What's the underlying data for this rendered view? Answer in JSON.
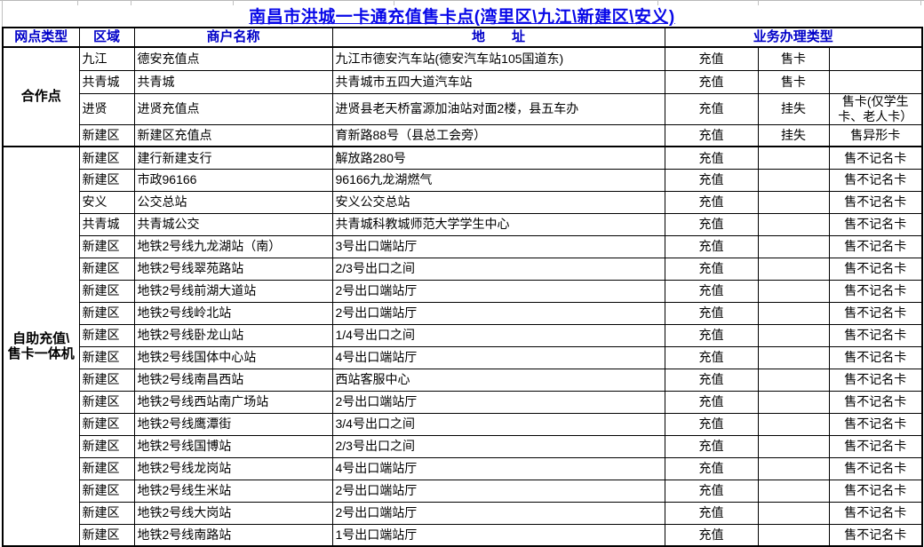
{
  "page": {
    "title": "南昌市洪城一卡通充值售卡点(湾里区\\九江\\新建区\\安义)"
  },
  "table": {
    "headers": {
      "col1": "网点类型",
      "col2": "区域",
      "col3": "商户名称",
      "col4": "地　　址",
      "col5": "业务办理类型"
    },
    "sections": [
      {
        "type_label": "合作点",
        "rows": [
          {
            "region": "九江",
            "merchant": "德安充值点",
            "address": "九江市德安汽车站(德安汽车站105国道东)",
            "biz1": "充值",
            "biz2": "售卡",
            "biz3": ""
          },
          {
            "region": "共青城",
            "merchant": "共青城",
            "address": "共青城市五四大道汽车站",
            "biz1": "充值",
            "biz2": "售卡",
            "biz3": ""
          },
          {
            "region": "进贤",
            "merchant": "进贤充值点",
            "address": "进贤县老天桥富源加油站对面2楼，县五车办",
            "biz1": "充值",
            "biz2": "挂失",
            "biz3": "售卡(仅学生卡、老人卡）"
          },
          {
            "region": "新建区",
            "merchant": "新建区充值点",
            "address": "育新路88号（县总工会旁）",
            "biz1": "充值",
            "biz2": "挂失",
            "biz3": "售异形卡"
          }
        ]
      },
      {
        "type_label": "自助充值\\\n售卡一体机",
        "rows": [
          {
            "region": "新建区",
            "merchant": "建行新建支行",
            "address": "解放路280号",
            "biz1": "充值",
            "biz2": "",
            "biz3": "售不记名卡"
          },
          {
            "region": "新建区",
            "merchant": "市政96166",
            "address": "96166九龙湖燃气",
            "biz1": "充值",
            "biz2": "",
            "biz3": "售不记名卡"
          },
          {
            "region": "安义",
            "merchant": "公交总站",
            "address": "安义公交总站",
            "biz1": "充值",
            "biz2": "",
            "biz3": "售不记名卡"
          },
          {
            "region": "共青城",
            "merchant": "共青城公交",
            "address": "共青城科教城师范大学学生中心",
            "biz1": "充值",
            "biz2": "",
            "biz3": "售不记名卡"
          },
          {
            "region": "新建区",
            "merchant": "地铁2号线九龙湖站（南）",
            "address": "3号出口端站厅",
            "biz1": "充值",
            "biz2": "",
            "biz3": "售不记名卡"
          },
          {
            "region": "新建区",
            "merchant": "地铁2号线翠苑路站",
            "address": "2/3号出口之间",
            "biz1": "充值",
            "biz2": "",
            "biz3": "售不记名卡"
          },
          {
            "region": "新建区",
            "merchant": "地铁2号线前湖大道站",
            "address": "2号出口端站厅",
            "biz1": "充值",
            "biz2": "",
            "biz3": "售不记名卡"
          },
          {
            "region": "新建区",
            "merchant": "地铁2号线岭北站",
            "address": "2号出口端站厅",
            "biz1": "充值",
            "biz2": "",
            "biz3": "售不记名卡"
          },
          {
            "region": "新建区",
            "merchant": "地铁2号线卧龙山站",
            "address": "1/4号出口之间",
            "biz1": "充值",
            "biz2": "",
            "biz3": "售不记名卡"
          },
          {
            "region": "新建区",
            "merchant": "地铁2号线国体中心站",
            "address": "4号出口端站厅",
            "biz1": "充值",
            "biz2": "",
            "biz3": "售不记名卡"
          },
          {
            "region": "新建区",
            "merchant": "地铁2号线南昌西站",
            "address": "西站客服中心",
            "biz1": "充值",
            "biz2": "",
            "biz3": "售不记名卡"
          },
          {
            "region": "新建区",
            "merchant": "地铁2号线西站南广场站",
            "address": "2号出口端站厅",
            "biz1": "充值",
            "biz2": "",
            "biz3": "售不记名卡"
          },
          {
            "region": "新建区",
            "merchant": "地铁2号线鹰潭街",
            "address": "3/4号出口之间",
            "biz1": "充值",
            "biz2": "",
            "biz3": "售不记名卡"
          },
          {
            "region": "新建区",
            "merchant": "地铁2号线国博站",
            "address": "2/3号出口之间",
            "biz1": "充值",
            "biz2": "",
            "biz3": "售不记名卡"
          },
          {
            "region": "新建区",
            "merchant": "地铁2号线龙岗站",
            "address": "4号出口端站厅",
            "biz1": "充值",
            "biz2": "",
            "biz3": "售不记名卡"
          },
          {
            "region": "新建区",
            "merchant": "地铁2号线生米站",
            "address": "2号出口端站厅",
            "biz1": "充值",
            "biz2": "",
            "biz3": "售不记名卡"
          },
          {
            "region": "新建区",
            "merchant": "地铁2号线大岗站",
            "address": "2号出口端站厅",
            "biz1": "充值",
            "biz2": "",
            "biz3": "售不记名卡"
          },
          {
            "region": "新建区",
            "merchant": "地铁2号线南路站",
            "address": "1号出口端站厅",
            "biz1": "充值",
            "biz2": "",
            "biz3": "售不记名卡"
          }
        ]
      }
    ]
  },
  "colors": {
    "title_blue": "#0808e8",
    "header_blue": "#0000c8",
    "border_black": "#000000",
    "gridline_gray": "#c0c0c0"
  }
}
